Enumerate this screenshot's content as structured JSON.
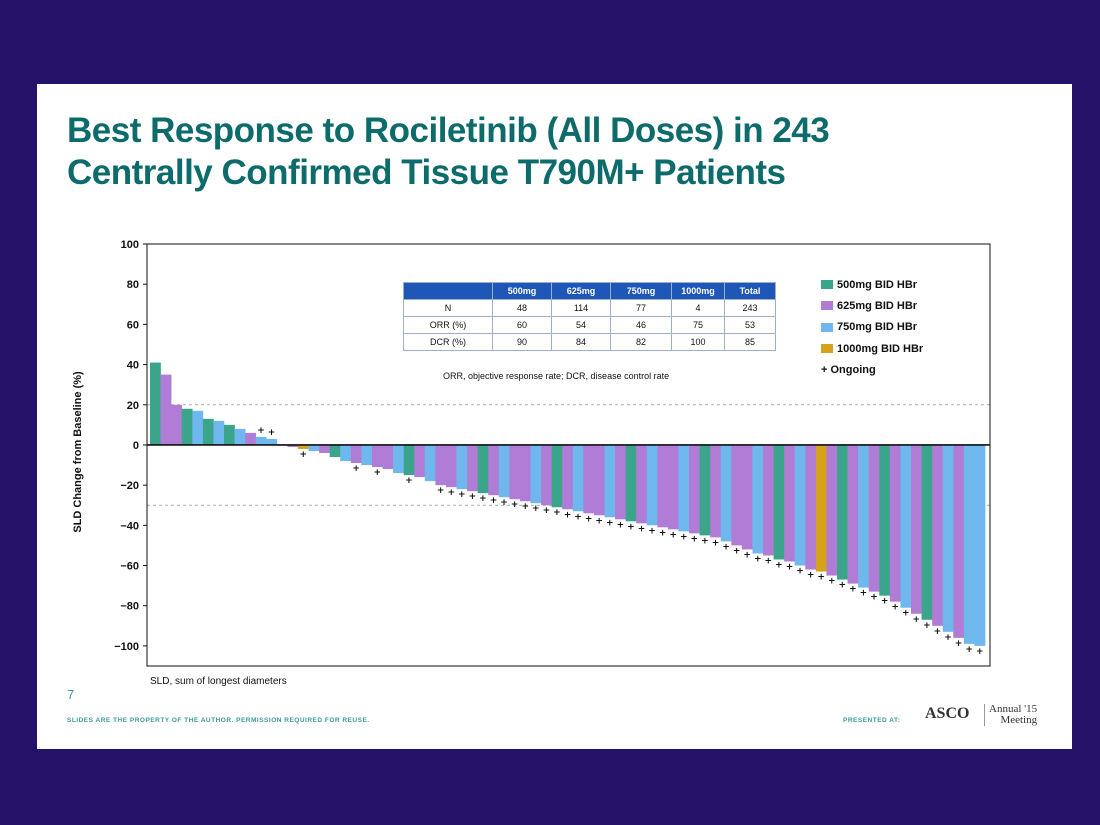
{
  "slide": {
    "title_line1": "Best Response to Rociletinib (All Doses) in 243",
    "title_line2": "Centrally Confirmed Tissue T790M+ Patients",
    "footnote": "SLD, sum of longest diameters",
    "page_number": "7",
    "footer_left": "SLIDES ARE THE PROPERTY OF THE AUTHOR. PERMISSION REQUIRED FOR REUSE.",
    "footer_presented": "PRESENTED AT:",
    "footer_asco": "ASCO",
    "footer_annual_1": "Annual '15",
    "footer_annual_2": "Meeting"
  },
  "table": {
    "headers": [
      "",
      "500mg",
      "625mg",
      "750mg",
      "1000mg",
      "Total"
    ],
    "rows": [
      [
        "N",
        "48",
        "114",
        "77",
        "4",
        "243"
      ],
      [
        "ORR (%)",
        "60",
        "54",
        "46",
        "75",
        "53"
      ],
      [
        "DCR (%)",
        "90",
        "84",
        "82",
        "100",
        "85"
      ]
    ],
    "note": "ORR, objective response rate; DCR, disease control rate"
  },
  "legend": [
    {
      "label": "500mg BID HBr",
      "color": "#3aa58a"
    },
    {
      "label": "625mg BID HBr",
      "color": "#b07cd6"
    },
    {
      "label": "750mg BID HBr",
      "color": "#6fb8ee"
    },
    {
      "label": "1000mg BID HBr",
      "color": "#d6a21c"
    },
    {
      "label": "+ Ongoing",
      "color": ""
    }
  ],
  "chart_data": {
    "type": "bar",
    "ylabel": "SLD Change from Baseline (%)",
    "ylim": [
      -110,
      100
    ],
    "yticks": [
      100,
      80,
      60,
      40,
      20,
      0,
      -20,
      -40,
      -60,
      -80,
      -100
    ],
    "reference_lines": [
      20,
      -30
    ],
    "series_colors": {
      "500mg": "#3aa58a",
      "625mg": "#b07cd6",
      "750mg": "#6fb8ee",
      "1000mg": "#d6a21c"
    },
    "points": [
      {
        "value": 41,
        "dose": "500mg"
      },
      {
        "value": 35,
        "dose": "625mg"
      },
      {
        "value": 20,
        "dose": "625mg"
      },
      {
        "value": 18,
        "dose": "500mg"
      },
      {
        "value": 17,
        "dose": "750mg"
      },
      {
        "value": 13,
        "dose": "500mg"
      },
      {
        "value": 12,
        "dose": "750mg"
      },
      {
        "value": 10,
        "dose": "500mg"
      },
      {
        "value": 8,
        "dose": "750mg"
      },
      {
        "value": 6,
        "dose": "625mg"
      },
      {
        "value": 4,
        "dose": "750mg",
        "ongoing": true
      },
      {
        "value": 3,
        "dose": "750mg",
        "ongoing": true
      },
      {
        "value": 0,
        "dose": "625mg"
      },
      {
        "value": -1,
        "dose": "625mg"
      },
      {
        "value": -2,
        "dose": "1000mg",
        "ongoing": true
      },
      {
        "value": -3,
        "dose": "750mg"
      },
      {
        "value": -4,
        "dose": "625mg"
      },
      {
        "value": -6,
        "dose": "500mg"
      },
      {
        "value": -8,
        "dose": "750mg"
      },
      {
        "value": -9,
        "dose": "625mg",
        "ongoing": true
      },
      {
        "value": -10,
        "dose": "750mg"
      },
      {
        "value": -11,
        "dose": "625mg",
        "ongoing": true
      },
      {
        "value": -12,
        "dose": "625mg"
      },
      {
        "value": -14,
        "dose": "750mg"
      },
      {
        "value": -15,
        "dose": "500mg",
        "ongoing": true
      },
      {
        "value": -16,
        "dose": "625mg"
      },
      {
        "value": -18,
        "dose": "750mg"
      },
      {
        "value": -20,
        "dose": "625mg",
        "ongoing": true
      },
      {
        "value": -21,
        "dose": "625mg",
        "ongoing": true
      },
      {
        "value": -22,
        "dose": "750mg",
        "ongoing": true
      },
      {
        "value": -23,
        "dose": "625mg",
        "ongoing": true
      },
      {
        "value": -24,
        "dose": "500mg",
        "ongoing": true
      },
      {
        "value": -25,
        "dose": "625mg",
        "ongoing": true
      },
      {
        "value": -26,
        "dose": "750mg",
        "ongoing": true
      },
      {
        "value": -27,
        "dose": "625mg",
        "ongoing": true
      },
      {
        "value": -28,
        "dose": "625mg",
        "ongoing": true
      },
      {
        "value": -29,
        "dose": "750mg",
        "ongoing": true
      },
      {
        "value": -30,
        "dose": "625mg",
        "ongoing": true
      },
      {
        "value": -31,
        "dose": "500mg",
        "ongoing": true
      },
      {
        "value": -32,
        "dose": "625mg",
        "ongoing": true
      },
      {
        "value": -33,
        "dose": "750mg",
        "ongoing": true
      },
      {
        "value": -34,
        "dose": "625mg",
        "ongoing": true
      },
      {
        "value": -35,
        "dose": "625mg",
        "ongoing": true
      },
      {
        "value": -36,
        "dose": "750mg",
        "ongoing": true
      },
      {
        "value": -37,
        "dose": "625mg",
        "ongoing": true
      },
      {
        "value": -38,
        "dose": "500mg",
        "ongoing": true
      },
      {
        "value": -39,
        "dose": "625mg",
        "ongoing": true
      },
      {
        "value": -40,
        "dose": "750mg",
        "ongoing": true
      },
      {
        "value": -41,
        "dose": "625mg",
        "ongoing": true
      },
      {
        "value": -42,
        "dose": "625mg",
        "ongoing": true
      },
      {
        "value": -43,
        "dose": "750mg",
        "ongoing": true
      },
      {
        "value": -44,
        "dose": "625mg",
        "ongoing": true
      },
      {
        "value": -45,
        "dose": "500mg",
        "ongoing": true
      },
      {
        "value": -46,
        "dose": "625mg",
        "ongoing": true
      },
      {
        "value": -48,
        "dose": "750mg",
        "ongoing": true
      },
      {
        "value": -50,
        "dose": "625mg",
        "ongoing": true
      },
      {
        "value": -52,
        "dose": "625mg",
        "ongoing": true
      },
      {
        "value": -54,
        "dose": "750mg",
        "ongoing": true
      },
      {
        "value": -55,
        "dose": "625mg",
        "ongoing": true
      },
      {
        "value": -57,
        "dose": "500mg",
        "ongoing": true
      },
      {
        "value": -58,
        "dose": "625mg",
        "ongoing": true
      },
      {
        "value": -60,
        "dose": "750mg",
        "ongoing": true
      },
      {
        "value": -62,
        "dose": "625mg",
        "ongoing": true
      },
      {
        "value": -63,
        "dose": "1000mg",
        "ongoing": true
      },
      {
        "value": -65,
        "dose": "625mg",
        "ongoing": true
      },
      {
        "value": -67,
        "dose": "500mg",
        "ongoing": true
      },
      {
        "value": -69,
        "dose": "625mg",
        "ongoing": true
      },
      {
        "value": -71,
        "dose": "750mg",
        "ongoing": true
      },
      {
        "value": -73,
        "dose": "625mg",
        "ongoing": true
      },
      {
        "value": -75,
        "dose": "500mg",
        "ongoing": true
      },
      {
        "value": -78,
        "dose": "625mg",
        "ongoing": true
      },
      {
        "value": -81,
        "dose": "750mg",
        "ongoing": true
      },
      {
        "value": -84,
        "dose": "625mg",
        "ongoing": true
      },
      {
        "value": -87,
        "dose": "500mg",
        "ongoing": true
      },
      {
        "value": -90,
        "dose": "625mg",
        "ongoing": true
      },
      {
        "value": -93,
        "dose": "750mg",
        "ongoing": true
      },
      {
        "value": -96,
        "dose": "625mg",
        "ongoing": true
      },
      {
        "value": -99,
        "dose": "750mg",
        "ongoing": true
      },
      {
        "value": -100,
        "dose": "750mg",
        "ongoing": true
      }
    ]
  }
}
